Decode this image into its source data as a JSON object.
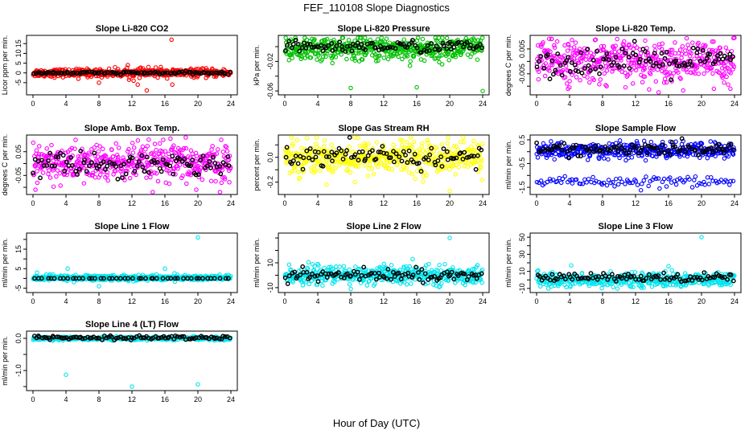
{
  "figure": {
    "title": "FEF_110108  Slope Diagnostics",
    "xlabel": "Hour of Day (UTC)"
  },
  "chart_data": [
    {
      "type": "scatter",
      "title": "Slope Li-820 CO2",
      "ylabel": "Licor ppm per min.",
      "xlim": [
        0,
        24
      ],
      "xticks": [
        0,
        4,
        8,
        12,
        16,
        20,
        24
      ],
      "x_tick_labels": [
        "0",
        "4",
        "8",
        "12",
        "16",
        "20",
        "24"
      ],
      "ylim": [
        -10,
        18
      ],
      "yticks": [
        -5,
        0,
        5,
        10,
        15
      ],
      "y_tick_labels": [
        "-5",
        "0",
        "5",
        "10",
        "15"
      ],
      "colors": {
        "all": "#ff0000",
        "subset": "#000000"
      },
      "series": [
        {
          "name": "all",
          "n": 480,
          "center": 0,
          "spread": 1,
          "outliers": [
            {
              "x": 16.8,
              "y": 17
            },
            {
              "x": 11.5,
              "y": 4
            },
            {
              "x": 12.2,
              "y": -4
            },
            {
              "x": 14.0,
              "y": 3
            },
            {
              "x": 15.5,
              "y": 3
            },
            {
              "x": 13.8,
              "y": -9
            },
            {
              "x": 8.0,
              "y": -5
            },
            {
              "x": 5.5,
              "y": -3
            },
            {
              "x": 12.7,
              "y": -6
            },
            {
              "x": 16.9,
              "y": -6
            }
          ]
        },
        {
          "name": "subset",
          "n": 96,
          "center": 0,
          "spread": 0.3
        }
      ]
    },
    {
      "type": "scatter",
      "title": "Slope Li-820 Pressure",
      "ylabel": "kPa per min.",
      "xlim": [
        0,
        24
      ],
      "xticks": [
        0,
        4,
        8,
        12,
        16,
        20,
        24
      ],
      "x_tick_labels": [
        "0",
        "4",
        "8",
        "12",
        "16",
        "20",
        "24"
      ],
      "ylim": [
        -0.062,
        0.012
      ],
      "yticks": [
        -0.06,
        -0.04,
        -0.02,
        0.0
      ],
      "y_tick_labels": [
        "-0.06",
        "",
        "-0.02",
        ""
      ],
      "colors": {
        "all": "#00c000",
        "subset": "#000000"
      },
      "series": [
        {
          "name": "all",
          "n": 480,
          "center": -0.003,
          "spread": 0.008,
          "outliers": [
            {
              "x": 8.0,
              "y": -0.056
            },
            {
              "x": 16.0,
              "y": -0.055
            },
            {
              "x": 24.0,
              "y": -0.06
            },
            {
              "x": 21.0,
              "y": 0.009
            },
            {
              "x": 8.5,
              "y": 0.008
            }
          ]
        },
        {
          "name": "subset",
          "n": 96,
          "center": 0.0,
          "spread": 0.004,
          "outliers": [
            {
              "x": 20.0,
              "y": 0.006
            }
          ]
        }
      ]
    },
    {
      "type": "scatter",
      "title": "Slope Li-820 Temp.",
      "ylabel": "degrees C per min.",
      "xlim": [
        0,
        24
      ],
      "xticks": [
        0,
        4,
        8,
        12,
        16,
        20,
        24
      ],
      "x_tick_labels": [
        "0",
        "4",
        "8",
        "12",
        "16",
        "20",
        "24"
      ],
      "ylim": [
        -0.0125,
        0.0095
      ],
      "yticks": [
        -0.01,
        -0.005,
        0.0,
        0.005
      ],
      "y_tick_labels": [
        "",
        "-0.005",
        "",
        "0.005"
      ],
      "colors": {
        "all": "#ff00ff",
        "subset": "#000000"
      },
      "series": [
        {
          "name": "all",
          "n": 480,
          "center": 0.0,
          "spread": 0.004,
          "outliers": [
            {
              "x": 2.5,
              "y": 0.008
            },
            {
              "x": 1.8,
              "y": 0.009
            },
            {
              "x": 3.8,
              "y": -0.011
            },
            {
              "x": 8.5,
              "y": -0.01
            },
            {
              "x": 21.5,
              "y": -0.011
            },
            {
              "x": 23.5,
              "y": -0.011
            }
          ]
        },
        {
          "name": "subset",
          "n": 96,
          "center": 0.0,
          "spread": 0.003
        }
      ]
    },
    {
      "type": "scatter",
      "title": "Slope Amb. Box Temp.",
      "ylabel": "degrees C per min.",
      "xlim": [
        0,
        24
      ],
      "xticks": [
        0,
        4,
        8,
        12,
        16,
        20,
        24
      ],
      "x_tick_labels": [
        "0",
        "4",
        "8",
        "12",
        "16",
        "20",
        "24"
      ],
      "ylim": [
        -0.12,
        0.11
      ],
      "yticks": [
        -0.1,
        -0.05,
        0.0,
        0.05
      ],
      "y_tick_labels": [
        "",
        "-0.05",
        "",
        "0.05"
      ],
      "colors": {
        "all": "#ff00ff",
        "subset": "#000000"
      },
      "series": [
        {
          "name": "all",
          "n": 480,
          "center": 0.0,
          "spread": 0.04,
          "outliers": [
            {
              "x": 15.8,
              "y": 0.1
            },
            {
              "x": 0.3,
              "y": -0.11
            },
            {
              "x": 19.8,
              "y": -0.11
            }
          ]
        },
        {
          "name": "subset",
          "n": 96,
          "center": 0.0,
          "spread": 0.025
        }
      ]
    },
    {
      "type": "scatter",
      "title": "Slope Gas Stream RH",
      "ylabel": "percent per min.",
      "xlim": [
        0,
        24
      ],
      "xticks": [
        0,
        4,
        8,
        12,
        16,
        20,
        24
      ],
      "x_tick_labels": [
        "0",
        "4",
        "8",
        "12",
        "16",
        "20",
        "24"
      ],
      "ylim": [
        -0.28,
        0.16
      ],
      "yticks": [
        -0.2,
        -0.1,
        0.0,
        0.1
      ],
      "y_tick_labels": [
        "-0.2",
        "",
        "0.0",
        ""
      ],
      "colors": {
        "all": "#ffff00",
        "subset": "#000000"
      },
      "series": [
        {
          "name": "all",
          "n": 480,
          "center": 0.0,
          "spread": 0.065,
          "outliers": [
            {
              "x": 20.0,
              "y": -0.27
            },
            {
              "x": 1.5,
              "y": 0.14
            },
            {
              "x": 14.0,
              "y": 0.14
            },
            {
              "x": 8.5,
              "y": -0.2
            }
          ]
        },
        {
          "name": "subset",
          "n": 96,
          "center": 0.0,
          "spread": 0.045
        }
      ]
    },
    {
      "type": "scatter",
      "title": "Slope Sample Flow",
      "ylabel": "ml/min per min.",
      "xlim": [
        0,
        24
      ],
      "xticks": [
        0,
        4,
        8,
        12,
        16,
        20,
        24
      ],
      "x_tick_labels": [
        "0",
        "4",
        "8",
        "12",
        "16",
        "20",
        "24"
      ],
      "ylim": [
        -1.7,
        0.6
      ],
      "yticks": [
        -1.5,
        -1.0,
        -0.5,
        0.0,
        0.5
      ],
      "y_tick_labels": [
        "-1.5",
        "",
        "-0.5",
        "",
        "0.5"
      ],
      "colors": {
        "all": "#0000ff",
        "subset": "#000000"
      },
      "series": [
        {
          "name": "upper",
          "n": 400,
          "center": 0.05,
          "spread": 0.17
        },
        {
          "name": "lower",
          "n": 100,
          "center": -1.25,
          "spread": 0.12
        },
        {
          "name": "subset",
          "n": 96,
          "center": 0.1,
          "spread": 0.12
        }
      ]
    },
    {
      "type": "scatter",
      "title": "Slope Line 1 Flow",
      "ylabel": "ml/min per min.",
      "xlim": [
        0,
        24
      ],
      "xticks": [
        0,
        4,
        8,
        12,
        16,
        20,
        24
      ],
      "x_tick_labels": [
        "0",
        "4",
        "8",
        "12",
        "16",
        "20",
        "24"
      ],
      "ylim": [
        -6,
        22
      ],
      "yticks": [
        -5,
        0,
        5,
        10,
        15,
        20
      ],
      "y_tick_labels": [
        "-5",
        "",
        "5",
        "",
        "15",
        ""
      ],
      "colors": {
        "all": "#00e5ee",
        "subset": "#000000"
      },
      "series": [
        {
          "name": "all",
          "n": 480,
          "center": 0.3,
          "spread": 0.7,
          "outliers": [
            {
              "x": 20.0,
              "y": 21
            },
            {
              "x": 4.2,
              "y": 5
            },
            {
              "x": 16.0,
              "y": 5
            },
            {
              "x": 8.0,
              "y": -4
            },
            {
              "x": 0.5,
              "y": 3
            }
          ]
        },
        {
          "name": "subset",
          "n": 48,
          "center": 0.0,
          "spread": 0.0,
          "line": true
        }
      ]
    },
    {
      "type": "scatter",
      "title": "Slope Line 2 Flow",
      "ylabel": "ml/min per min.",
      "xlim": [
        0,
        24
      ],
      "xticks": [
        0,
        4,
        8,
        12,
        16,
        20,
        24
      ],
      "x_tick_labels": [
        "0",
        "4",
        "8",
        "12",
        "16",
        "20",
        "24"
      ],
      "ylim": [
        -12,
        32
      ],
      "yticks": [
        -10,
        0,
        10,
        20,
        30
      ],
      "y_tick_labels": [
        "-10",
        "",
        "10",
        "",
        ""
      ],
      "colors": {
        "all": "#00e5ee",
        "subset": "#000000"
      },
      "series": [
        {
          "name": "all",
          "n": 480,
          "center": 0.0,
          "spread": 3.5,
          "outliers": [
            {
              "x": 20.0,
              "y": 30
            },
            {
              "x": 15.5,
              "y": 13
            },
            {
              "x": 8.0,
              "y": -11
            },
            {
              "x": 4.0,
              "y": 9
            }
          ]
        },
        {
          "name": "subset",
          "n": 96,
          "center": 0.0,
          "spread": 2.5
        }
      ]
    },
    {
      "type": "scatter",
      "title": "Slope Line 3 Flow",
      "ylabel": "ml/min per min.",
      "xlim": [
        0,
        24
      ],
      "xticks": [
        0,
        4,
        8,
        12,
        16,
        20,
        24
      ],
      "x_tick_labels": [
        "0",
        "4",
        "8",
        "12",
        "16",
        "20",
        "24"
      ],
      "ylim": [
        -12,
        52
      ],
      "yticks": [
        -10,
        0,
        10,
        20,
        30,
        40,
        50
      ],
      "y_tick_labels": [
        "-10",
        "",
        "10",
        "",
        "30",
        "",
        "50"
      ],
      "colors": {
        "all": "#00e5ee",
        "subset": "#000000"
      },
      "series": [
        {
          "name": "all",
          "n": 480,
          "center": 0.0,
          "spread": 4,
          "outliers": [
            {
              "x": 20.0,
              "y": 50
            },
            {
              "x": 4.2,
              "y": 17
            },
            {
              "x": 16.0,
              "y": 16
            }
          ]
        },
        {
          "name": "subset",
          "n": 96,
          "center": 3,
          "spread": 2.5
        }
      ]
    },
    {
      "type": "scatter",
      "title": "Slope Line 4 (LT) Flow",
      "ylabel": "ml/min per min.",
      "xlim": [
        0,
        24
      ],
      "xticks": [
        0,
        4,
        8,
        12,
        16,
        20,
        24
      ],
      "x_tick_labels": [
        "0",
        "4",
        "8",
        "12",
        "16",
        "20",
        "24"
      ],
      "ylim": [
        -1.55,
        0.15
      ],
      "yticks": [
        -1.5,
        -1.0,
        -0.5,
        0.0
      ],
      "y_tick_labels": [
        "",
        "-1.0",
        "",
        "0.0"
      ],
      "colors": {
        "all": "#00e5ee",
        "subset": "#000000"
      },
      "series": [
        {
          "name": "all",
          "n": 480,
          "center": 0.0,
          "spread": 0.025,
          "outliers": [
            {
              "x": 4.0,
              "y": -1.13
            },
            {
              "x": 12.0,
              "y": -1.5
            },
            {
              "x": 20.0,
              "y": -1.43
            }
          ]
        },
        {
          "name": "subset",
          "n": 96,
          "center": 0.02,
          "spread": 0.03
        }
      ]
    }
  ]
}
